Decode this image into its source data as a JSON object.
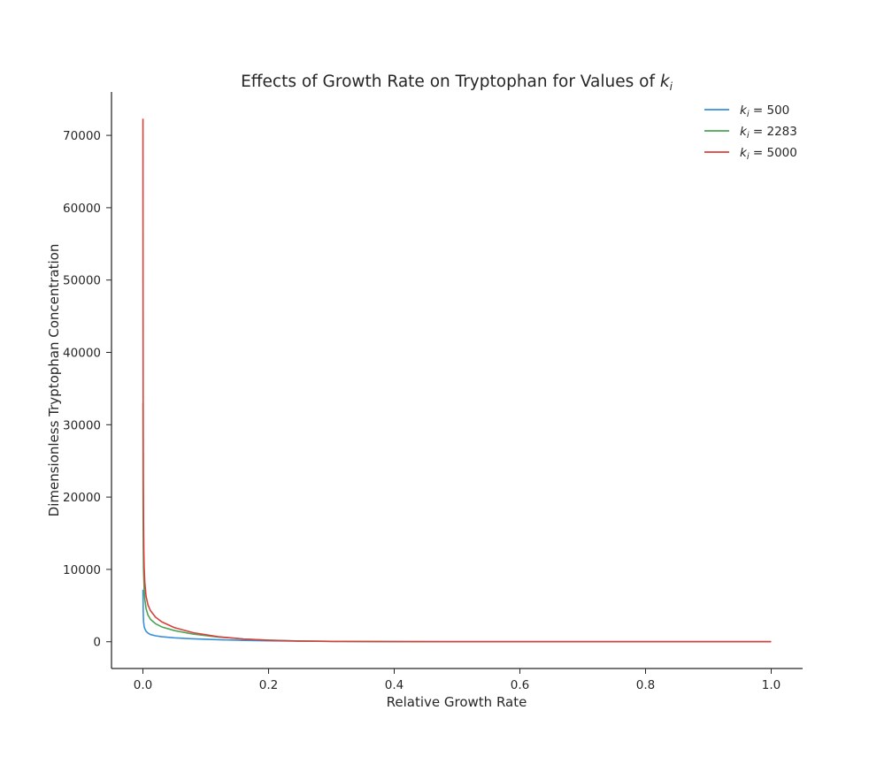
{
  "chart_data": {
    "type": "line",
    "title": "Effects of Growth Rate on Tryptophan for Values of ",
    "title_symbol": "k",
    "title_symbol_subscript": "i",
    "xlabel": "Relative Growth Rate",
    "ylabel": "Dimensionless Tryptophan Concentration",
    "xlim": [
      -0.05,
      1.05
    ],
    "ylim": [
      -3700,
      76000
    ],
    "xticks": [
      0.0,
      0.2,
      0.4,
      0.6,
      0.8,
      1.0
    ],
    "xtick_labels": [
      "0.0",
      "0.2",
      "0.4",
      "0.6",
      "0.8",
      "1.0"
    ],
    "yticks": [
      0,
      10000,
      20000,
      30000,
      40000,
      50000,
      60000,
      70000
    ],
    "ytick_labels": [
      "0",
      "10000",
      "20000",
      "30000",
      "40000",
      "50000",
      "60000",
      "70000"
    ],
    "grid": false,
    "legend_position": "top-right",
    "series": [
      {
        "name": "k_i = 500",
        "legend_symbol": "k",
        "legend_subscript": "i",
        "legend_value": " = 500",
        "color": "#3a8fd9",
        "x": [
          0.0001,
          0.0005,
          0.001,
          0.002,
          0.003,
          0.005,
          0.008,
          0.012,
          0.02,
          0.03,
          0.05,
          0.08,
          0.12,
          0.16,
          0.2,
          0.25,
          0.3,
          0.4,
          0.5,
          0.6,
          0.7,
          0.8,
          0.9,
          1.0
        ],
        "y": [
          7200,
          4200,
          2800,
          2100,
          1800,
          1450,
          1200,
          1000,
          820,
          690,
          540,
          400,
          280,
          190,
          130,
          80,
          50,
          20,
          10,
          5,
          3,
          2,
          1,
          0
        ]
      },
      {
        "name": "k_i = 2283",
        "legend_symbol": "k",
        "legend_subscript": "i",
        "legend_value": " = 2283",
        "color": "#4aa454",
        "x": [
          0.0001,
          0.0003,
          0.0006,
          0.001,
          0.002,
          0.003,
          0.005,
          0.008,
          0.012,
          0.02,
          0.03,
          0.05,
          0.08,
          0.12,
          0.16,
          0.2,
          0.25,
          0.3,
          0.4,
          0.5,
          0.6,
          0.8,
          1.0
        ],
        "y": [
          33000,
          19000,
          13000,
          10000,
          7200,
          5900,
          4600,
          3700,
          3100,
          2500,
          2050,
          1550,
          1050,
          650,
          380,
          220,
          100,
          50,
          15,
          5,
          2,
          1,
          0
        ]
      },
      {
        "name": "k_i = 5000",
        "legend_symbol": "k",
        "legend_subscript": "i",
        "legend_value": " = 5000",
        "color": "#d9403b",
        "x": [
          0.0001,
          0.0002,
          0.0004,
          0.0007,
          0.001,
          0.0015,
          0.002,
          0.003,
          0.005,
          0.008,
          0.012,
          0.02,
          0.03,
          0.05,
          0.08,
          0.12,
          0.16,
          0.2,
          0.25,
          0.3,
          0.4,
          0.5,
          0.6,
          0.8,
          1.0
        ],
        "y": [
          72300,
          50000,
          33000,
          22000,
          16500,
          12500,
          10300,
          8200,
          6300,
          5100,
          4300,
          3400,
          2750,
          1950,
          1250,
          700,
          380,
          200,
          90,
          45,
          12,
          4,
          2,
          1,
          0
        ]
      }
    ]
  }
}
